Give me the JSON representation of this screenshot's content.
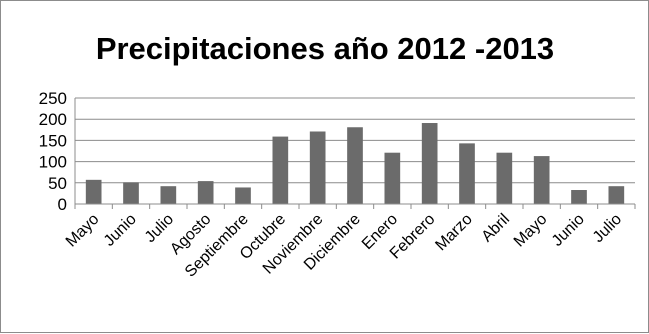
{
  "chart_data": {
    "type": "bar",
    "title": "Precipitaciones año 2012 -2013",
    "categories": [
      "Mayo",
      "Junio",
      "Julio",
      "Agosto",
      "Septiembre",
      "Octubre",
      "Noviembre",
      "Diciembre",
      "Enero",
      "Febrero",
      "Marzo",
      "Abril",
      "Mayo",
      "Junio",
      "Julio"
    ],
    "values": [
      57,
      51,
      42,
      54,
      39,
      159,
      171,
      181,
      121,
      191,
      143,
      121,
      113,
      33,
      42
    ],
    "ylim": [
      0,
      250
    ],
    "yticks": [
      "0",
      "50",
      "100",
      "150",
      "200",
      "250"
    ],
    "grid": true,
    "legend": "none",
    "colors": {
      "bar": "#6b6b6b",
      "grid": "#8c8c8c",
      "axis": "#8c8c8c"
    }
  }
}
